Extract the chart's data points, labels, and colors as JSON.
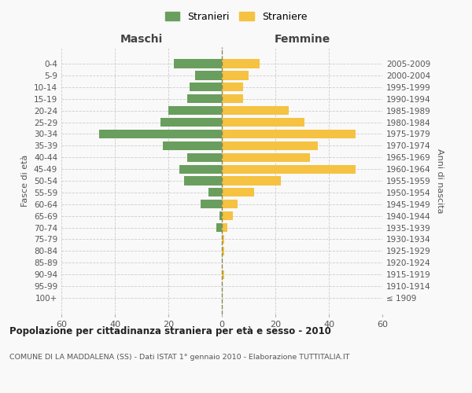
{
  "age_groups": [
    "100+",
    "95-99",
    "90-94",
    "85-89",
    "80-84",
    "75-79",
    "70-74",
    "65-69",
    "60-64",
    "55-59",
    "50-54",
    "45-49",
    "40-44",
    "35-39",
    "30-34",
    "25-29",
    "20-24",
    "15-19",
    "10-14",
    "5-9",
    "0-4"
  ],
  "birth_years": [
    "≤ 1909",
    "1910-1914",
    "1915-1919",
    "1920-1924",
    "1925-1929",
    "1930-1934",
    "1935-1939",
    "1940-1944",
    "1945-1949",
    "1950-1954",
    "1955-1959",
    "1960-1964",
    "1965-1969",
    "1970-1974",
    "1975-1979",
    "1980-1984",
    "1985-1989",
    "1990-1994",
    "1995-1999",
    "2000-2004",
    "2005-2009"
  ],
  "maschi": [
    0,
    0,
    0,
    0,
    0,
    0,
    2,
    1,
    8,
    5,
    14,
    16,
    13,
    22,
    46,
    23,
    20,
    13,
    12,
    10,
    18
  ],
  "femmine": [
    0,
    0,
    1,
    0,
    1,
    1,
    2,
    4,
    6,
    12,
    22,
    50,
    33,
    36,
    50,
    31,
    25,
    8,
    8,
    10,
    14
  ],
  "maschi_color": "#6a9e5e",
  "femmine_color": "#f5c242",
  "bg_color": "#f9f9f9",
  "grid_color": "#cccccc",
  "center_line_color": "#888855",
  "title": "Popolazione per cittadinanza straniera per età e sesso - 2010",
  "subtitle": "COMUNE DI LA MADDALENA (SS) - Dati ISTAT 1° gennaio 2010 - Elaborazione TUTTITALIA.IT",
  "xlabel_left": "Maschi",
  "xlabel_right": "Femmine",
  "ylabel_left": "Fasce di età",
  "ylabel_right": "Anni di nascita",
  "legend_maschi": "Stranieri",
  "legend_femmine": "Straniere",
  "xlim": 60
}
